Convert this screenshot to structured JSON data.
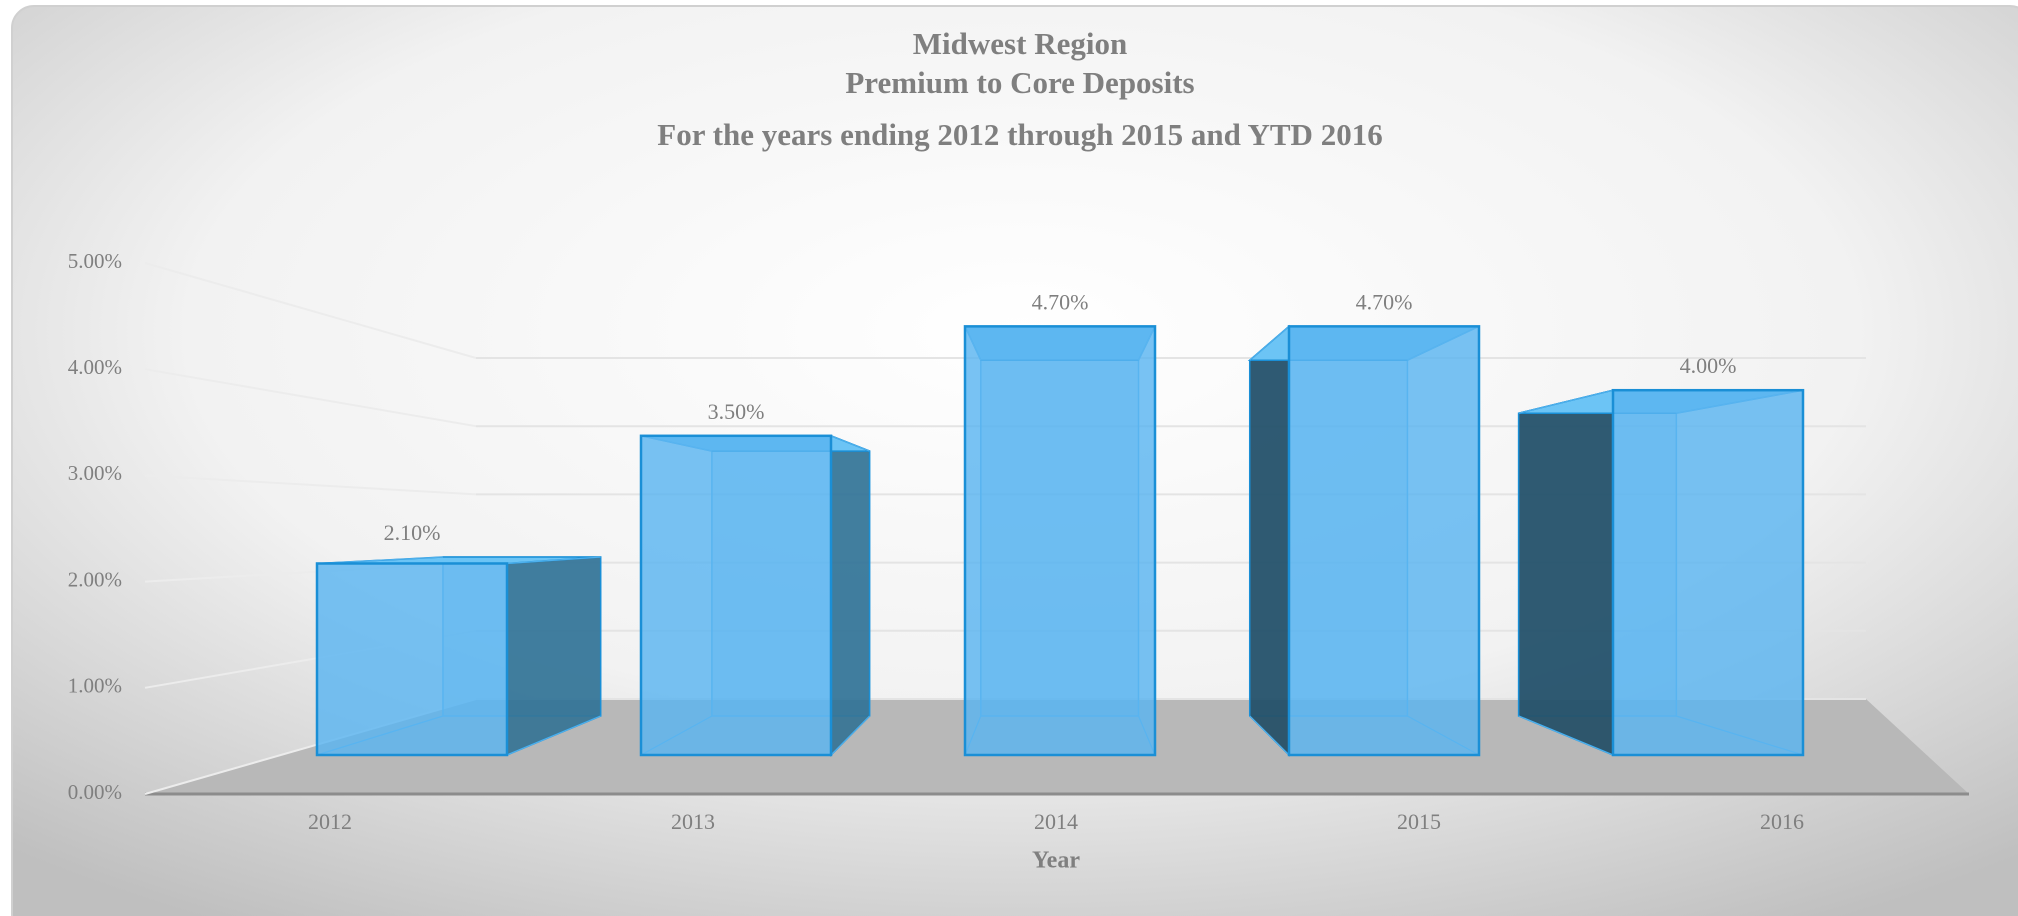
{
  "chart_data": {
    "type": "bar3d",
    "title": "Midwest Region",
    "subtitle": "Premium to Core Deposits",
    "subtitle2": "For the years ending 2012 through 2015 and YTD 2016",
    "x_label": "Year",
    "categories": [
      "2012",
      "2013",
      "2014",
      "2015",
      "2016"
    ],
    "values": [
      2.1,
      3.5,
      4.7,
      4.7,
      4.0
    ],
    "value_labels": [
      "2.10%",
      "3.50%",
      "4.70%",
      "4.70%",
      "4.00%"
    ],
    "color": "#5ab4f0",
    "ylim": [
      0,
      5
    ],
    "yticks": [
      {
        "value": 0,
        "label": "0.00%"
      },
      {
        "value": 1,
        "label": "1.00%"
      },
      {
        "value": 2,
        "label": "2.00%"
      },
      {
        "value": 3,
        "label": "3.00%"
      },
      {
        "value": 4,
        "label": "4.00%"
      },
      {
        "value": 5,
        "label": "5.00%"
      }
    ],
    "grid": true
  }
}
